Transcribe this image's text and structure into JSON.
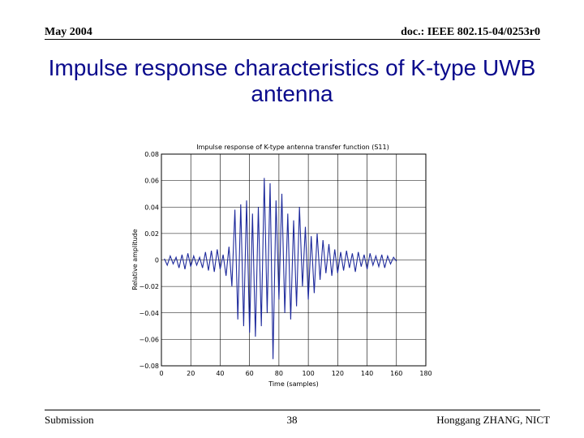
{
  "header": {
    "left": "May 2004",
    "right": "doc.: IEEE 802.15-04/0253r0"
  },
  "slide_title": "Impulse response characteristics of K-type UWB antenna",
  "footer": {
    "left": "Submission",
    "center": "38",
    "right": "Honggang ZHANG, NICT"
  },
  "colors": {
    "title": "#0a0a8c",
    "series": "#1e2a9c"
  },
  "chart_data": {
    "type": "line",
    "title": "Impulse response of K-type antenna transfer function (S11)",
    "xlabel": "Time (samples)",
    "ylabel": "Relative amplitude",
    "xlim": [
      0,
      180
    ],
    "ylim": [
      -0.08,
      0.08
    ],
    "xticks": [
      0,
      20,
      40,
      60,
      80,
      100,
      120,
      140,
      160,
      180
    ],
    "yticks": [
      0.08,
      0.06,
      0.04,
      0.02,
      0,
      -0.02,
      -0.04,
      -0.06,
      -0.08
    ],
    "xtick_labels": [
      "0",
      "20",
      "40",
      "60",
      "80",
      "100",
      "120",
      "140",
      "160",
      "180"
    ],
    "ytick_labels": [
      "0.08",
      "0.06",
      "0.04",
      "0.02",
      "0",
      "−0.02",
      "−0.04",
      "−0.06",
      "−0.08"
    ],
    "grid": true,
    "series": [
      {
        "x": [
          2,
          4,
          6,
          8,
          10,
          12,
          14,
          16,
          18,
          20,
          22,
          24,
          26,
          28,
          30,
          32,
          34,
          36,
          38,
          40,
          42,
          44,
          46,
          48,
          50,
          52,
          54,
          56,
          58,
          60,
          62,
          64,
          66,
          68,
          70,
          72,
          74,
          76,
          78,
          80,
          82,
          84,
          86,
          88,
          90,
          92,
          94,
          96,
          98,
          100,
          102,
          104,
          106,
          108,
          110,
          112,
          114,
          116,
          118,
          120,
          122,
          124,
          126,
          128,
          130,
          132,
          134,
          136,
          138,
          140,
          142,
          144,
          146,
          148,
          150,
          152,
          154,
          156,
          158,
          160
        ],
        "y": [
          0.001,
          -0.004,
          0.003,
          -0.003,
          0.002,
          -0.006,
          0.004,
          -0.007,
          0.005,
          -0.005,
          0.003,
          -0.004,
          0.002,
          -0.006,
          0.006,
          -0.008,
          0.007,
          -0.009,
          0.008,
          -0.007,
          0.004,
          -0.012,
          0.01,
          -0.02,
          0.038,
          -0.045,
          0.042,
          -0.05,
          0.045,
          -0.055,
          0.035,
          -0.058,
          0.04,
          -0.05,
          0.062,
          -0.04,
          0.058,
          -0.075,
          0.045,
          -0.03,
          0.05,
          -0.04,
          0.035,
          -0.045,
          0.03,
          -0.035,
          0.04,
          -0.02,
          0.025,
          -0.03,
          0.018,
          -0.025,
          0.02,
          -0.015,
          0.015,
          -0.01,
          0.012,
          -0.012,
          0.008,
          -0.01,
          0.006,
          -0.008,
          0.007,
          -0.006,
          0.005,
          -0.009,
          0.006,
          -0.005,
          0.004,
          -0.007,
          0.005,
          -0.004,
          0.003,
          -0.005,
          0.004,
          -0.006,
          0.003,
          -0.003,
          0.002,
          -0.001
        ]
      }
    ]
  }
}
